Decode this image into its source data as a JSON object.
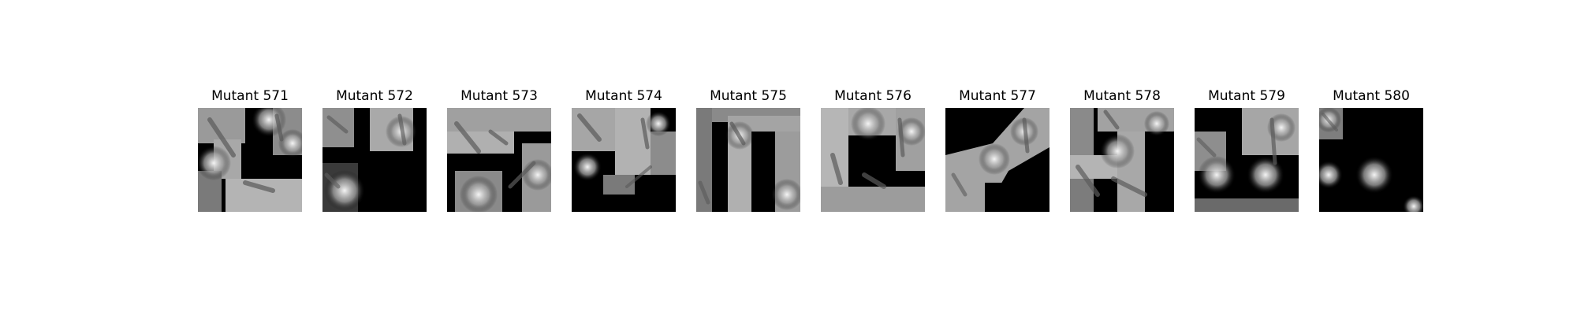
{
  "figure": {
    "background": "#ffffff",
    "panels": [
      {
        "title": "Mutant 571",
        "image": "grayscale mutated image of rod-shaped objects with bright blurred blobs"
      },
      {
        "title": "Mutant 572",
        "image": "grayscale mutated image of rod-shaped objects with bright blurred blobs"
      },
      {
        "title": "Mutant 573",
        "image": "grayscale mutated image of rod-shaped objects with bright blurred blobs"
      },
      {
        "title": "Mutant 574",
        "image": "grayscale mutated image of rod-shaped objects with bright blurred blobs"
      },
      {
        "title": "Mutant 575",
        "image": "grayscale mutated image of rod-shaped objects with bright blurred blobs"
      },
      {
        "title": "Mutant 576",
        "image": "grayscale mutated image of rod-shaped objects with bright blurred blobs"
      },
      {
        "title": "Mutant 577",
        "image": "grayscale mutated image of rod-shaped objects with bright blurred blobs"
      },
      {
        "title": "Mutant 578",
        "image": "grayscale mutated image of rod-shaped objects with bright blurred blobs"
      },
      {
        "title": "Mutant 579",
        "image": "grayscale mutated image of rod-shaped objects with bright blurred blobs"
      },
      {
        "title": "Mutant 580",
        "image": "grayscale mutated image of rod-shaped objects with bright blurred blobs"
      }
    ]
  }
}
